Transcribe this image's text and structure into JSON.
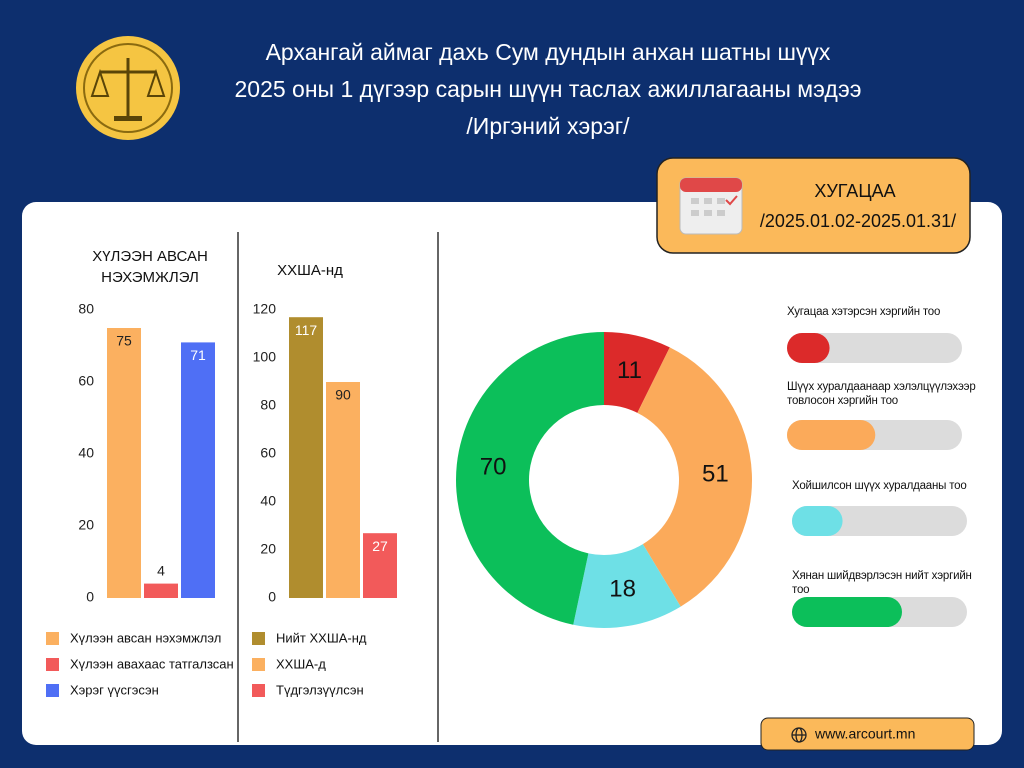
{
  "header": {
    "title_lines": [
      "Архангай аймаг дахь Сум дундын анхан шатны шүүх",
      "2025 оны 1 дүгээр сарын шүүн таслах ажиллагааны мэдээ",
      "/Иргэний хэрэг/"
    ]
  },
  "period": {
    "label": "ХУГАЦАА",
    "range": "/2025.01.02-2025.01.31/"
  },
  "website": "www.arcourt.mn",
  "chart_data": [
    {
      "type": "bar",
      "title": "ХҮЛЭЭН АВСАН НЭХЭМЖЛЭЛ",
      "categories": [
        "Хүлээн авсан нэхэмжлэл",
        "Хүлээн авахаас татгалзсан",
        "Хэрэг үүсгэсэн"
      ],
      "values": [
        75,
        4,
        71
      ],
      "colors": [
        "#fbb060",
        "#f25a5a",
        "#4f6ff5"
      ],
      "ylim": [
        0,
        80
      ],
      "yticks": [
        0,
        20,
        40,
        60,
        80
      ]
    },
    {
      "type": "bar",
      "title": "ХХША-нд",
      "categories": [
        "Нийт ХХША-нд",
        "ХХША-д",
        "Түдгэлзүүлсэн"
      ],
      "values": [
        117,
        90,
        27
      ],
      "colors": [
        "#b08d2e",
        "#fbb060",
        "#f25a5a"
      ],
      "ylim": [
        0,
        120
      ],
      "yticks": [
        0,
        20,
        40,
        60,
        80,
        100,
        120
      ]
    },
    {
      "type": "donut",
      "categories": [
        "Хугацаа хэтэрсэн хэргийн тоо",
        "Шүүх хуралдаанаар хэлэлцүүлэхээр товлосон хэргийн тоо",
        "Хойшилсон шүүх хуралдааны тоо",
        "Хянан шийдвэрлэсэн нийт хэргийн тоо"
      ],
      "values": [
        11,
        51,
        18,
        70
      ],
      "colors": [
        "#dc2a2a",
        "#fbaa5a",
        "#6ee0e6",
        "#0cbf5a"
      ]
    }
  ]
}
